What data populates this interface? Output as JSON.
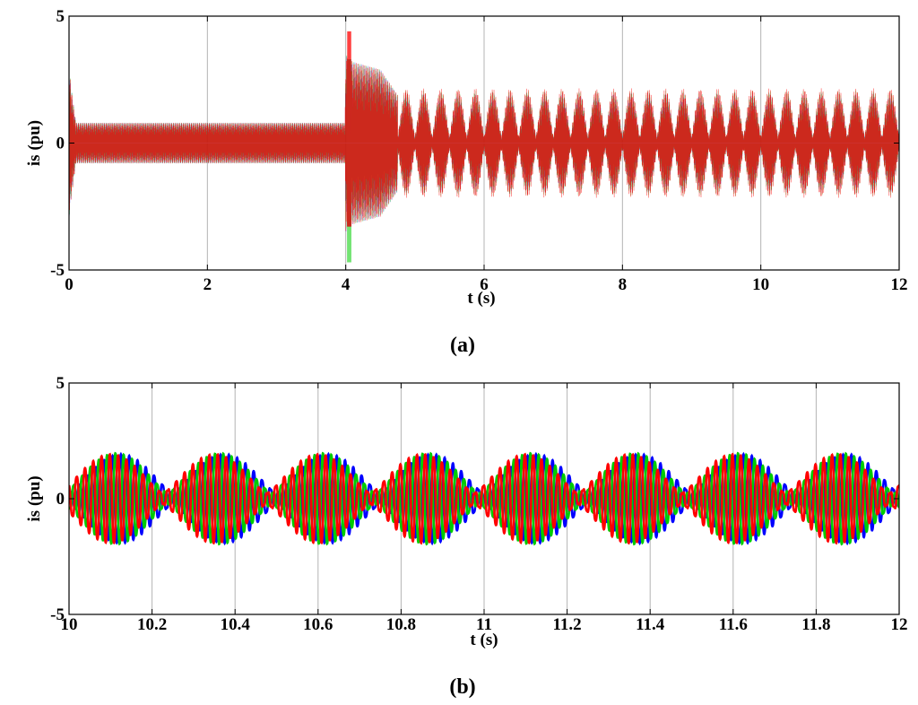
{
  "chart_data": [
    {
      "type": "line",
      "panel": "a",
      "caption": "(a)",
      "xlabel": "t (s)",
      "ylabel": "is (pu)",
      "xlim": [
        0,
        12
      ],
      "ylim": [
        -5,
        5
      ],
      "xticks": [
        0,
        2,
        4,
        6,
        8,
        10,
        12
      ],
      "xtick_labels": [
        "0",
        "2",
        "4",
        "6",
        "8",
        "10",
        "12"
      ],
      "yticks": [
        -5,
        0,
        5
      ],
      "ytick_labels": [
        "-5",
        "0",
        "5"
      ],
      "grid": true,
      "colors": [
        "#0000ff",
        "#00cc00",
        "#ff0000"
      ],
      "series": [
        {
          "phase": 0,
          "values_note": "three-phase stator current"
        },
        {
          "phase": 1
        },
        {
          "phase": 2
        }
      ],
      "envelope": {
        "t": [
          0,
          0.03,
          0.1,
          3.99,
          4.0,
          4.1,
          4.5,
          4.75,
          5.0,
          12.0
        ],
        "amplitude": [
          3.0,
          2.2,
          0.8,
          0.8,
          3.5,
          3.2,
          2.9,
          1.9,
          1.1,
          1.1
        ]
      },
      "beat": {
        "start": 4.75,
        "period": 0.25,
        "peak": 2.0,
        "floor": 0.25
      },
      "transient_peaks": {
        "max": 4.4,
        "min": -4.7,
        "t": 4.05
      },
      "dense": true
    },
    {
      "type": "line",
      "panel": "b",
      "caption": "(b)",
      "xlabel": "t (s)",
      "ylabel": "is (pu)",
      "xlim": [
        10,
        12
      ],
      "ylim": [
        -5,
        5
      ],
      "xticks": [
        10,
        10.2,
        10.4,
        10.6,
        10.8,
        11,
        11.2,
        11.4,
        11.6,
        11.8,
        12
      ],
      "xtick_labels": [
        "10",
        "10.2",
        "10.4",
        "10.6",
        "10.8",
        "11",
        "11.2",
        "11.4",
        "11.6",
        "11.8",
        "12"
      ],
      "yticks": [
        -5,
        0,
        5
      ],
      "ytick_labels": [
        "-5",
        "0",
        "5"
      ],
      "grid": true,
      "colors": [
        "#0000ff",
        "#00cc00",
        "#ff0000"
      ],
      "series": [
        {
          "phase": 0
        },
        {
          "phase": 1
        },
        {
          "phase": 2
        }
      ],
      "beat": {
        "start": 10.0,
        "period": 0.25,
        "peak": 2.0,
        "floor": 0.25
      },
      "carrier_hz": 50,
      "dense": false
    }
  ]
}
